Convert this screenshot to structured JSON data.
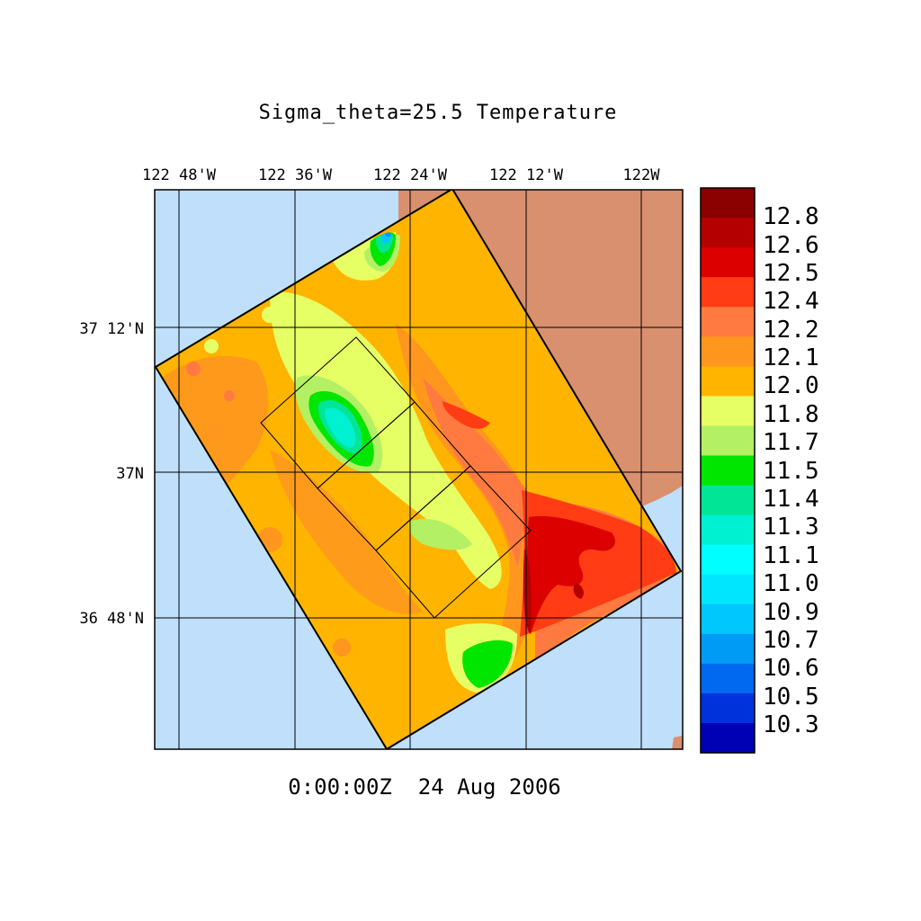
{
  "title": "Sigma_theta=25.5 Temperature",
  "timestamp": "0:00:00Z  24 Aug 2006",
  "longitude_labels": [
    "122 48'W",
    "122 36'W",
    "122 24'W",
    "122 12'W",
    "122W"
  ],
  "latitude_labels": [
    "37 12'N",
    "37N",
    "36 48'N"
  ],
  "colorbar": {
    "labels": [
      "12.8",
      "12.6",
      "12.5",
      "12.4",
      "12.2",
      "12.1",
      "12.0",
      "11.8",
      "11.7",
      "11.5",
      "11.4",
      "11.3",
      "11.1",
      "11.0",
      "10.9",
      "10.7",
      "10.6",
      "10.5",
      "10.3"
    ],
    "colors": [
      "#8b0000",
      "#b50000",
      "#dd0000",
      "#ff3c14",
      "#ff7a40",
      "#ff961e",
      "#ffb400",
      "#e6ff64",
      "#b4f064",
      "#00e600",
      "#00e696",
      "#00f0d2",
      "#00ffff",
      "#00e6ff",
      "#00c8ff",
      "#009bf5",
      "#0069f0",
      "#0032dc",
      "#0000b4"
    ]
  },
  "colors": {
    "ocean": "#bfdffa",
    "land": "#d9906f",
    "base_temperature": "#ffb400",
    "frame": "#000000"
  }
}
